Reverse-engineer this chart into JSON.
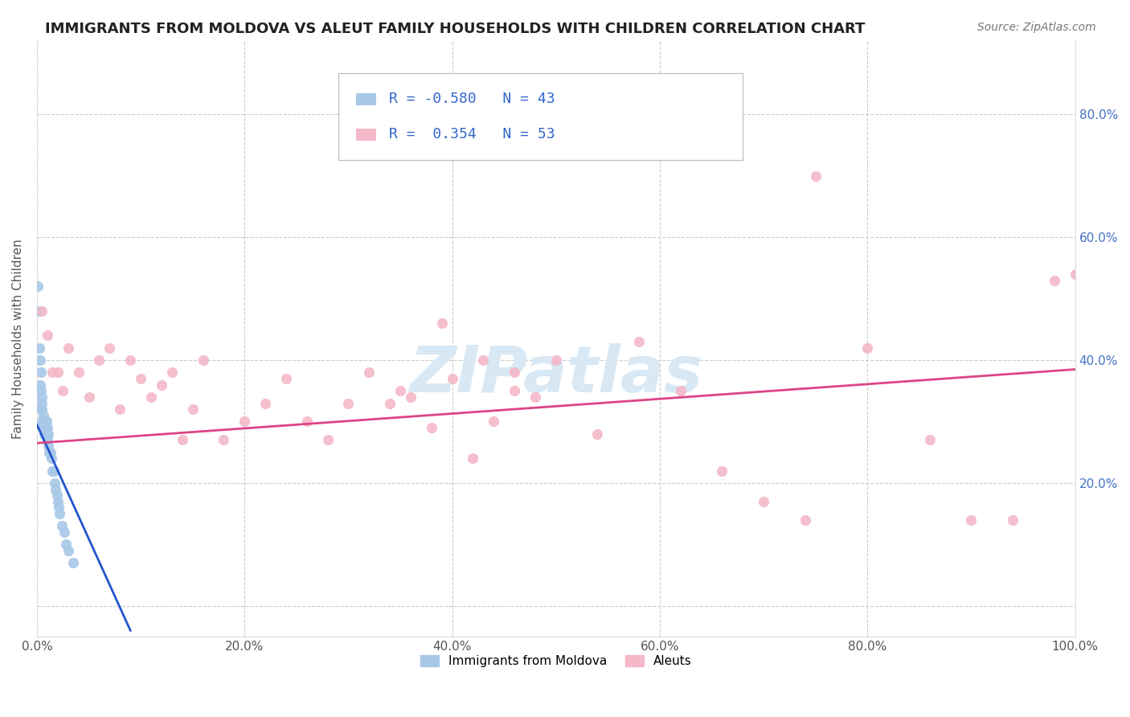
{
  "title": "IMMIGRANTS FROM MOLDOVA VS ALEUT FAMILY HOUSEHOLDS WITH CHILDREN CORRELATION CHART",
  "source": "Source: ZipAtlas.com",
  "ylabel": "Family Households with Children",
  "xlim": [
    0.0,
    1.0
  ],
  "ylim": [
    -0.05,
    0.92
  ],
  "yticks": [
    0.0,
    0.2,
    0.4,
    0.6,
    0.8
  ],
  "ytick_labels_right": [
    "",
    "20.0%",
    "40.0%",
    "60.0%",
    "80.0%"
  ],
  "xticks": [
    0.0,
    0.2,
    0.4,
    0.6,
    0.8,
    1.0
  ],
  "xtick_labels": [
    "0.0%",
    "20.0%",
    "40.0%",
    "60.0%",
    "80.0%",
    "100.0%"
  ],
  "legend_labels": [
    "Immigrants from Moldova",
    "Aleuts"
  ],
  "blue_scatter_x": [
    0.001,
    0.002,
    0.002,
    0.003,
    0.003,
    0.004,
    0.004,
    0.004,
    0.005,
    0.005,
    0.005,
    0.005,
    0.006,
    0.006,
    0.006,
    0.007,
    0.007,
    0.007,
    0.008,
    0.008,
    0.008,
    0.009,
    0.009,
    0.01,
    0.01,
    0.011,
    0.011,
    0.012,
    0.013,
    0.014,
    0.015,
    0.016,
    0.017,
    0.018,
    0.019,
    0.02,
    0.021,
    0.022,
    0.024,
    0.026,
    0.028,
    0.03,
    0.035
  ],
  "blue_scatter_y": [
    0.52,
    0.48,
    0.42,
    0.4,
    0.36,
    0.38,
    0.35,
    0.32,
    0.34,
    0.32,
    0.3,
    0.33,
    0.31,
    0.29,
    0.3,
    0.3,
    0.3,
    0.28,
    0.3,
    0.28,
    0.29,
    0.28,
    0.3,
    0.27,
    0.29,
    0.28,
    0.26,
    0.25,
    0.25,
    0.24,
    0.22,
    0.22,
    0.2,
    0.19,
    0.18,
    0.17,
    0.16,
    0.15,
    0.13,
    0.12,
    0.1,
    0.09,
    0.07
  ],
  "pink_scatter_x": [
    0.005,
    0.01,
    0.015,
    0.02,
    0.025,
    0.03,
    0.04,
    0.05,
    0.06,
    0.07,
    0.08,
    0.09,
    0.1,
    0.11,
    0.12,
    0.13,
    0.14,
    0.15,
    0.16,
    0.18,
    0.2,
    0.22,
    0.24,
    0.26,
    0.28,
    0.3,
    0.32,
    0.34,
    0.36,
    0.38,
    0.4,
    0.42,
    0.44,
    0.46,
    0.48,
    0.5,
    0.54,
    0.58,
    0.62,
    0.66,
    0.7,
    0.74,
    0.8,
    0.86,
    0.9,
    0.94,
    1.0,
    0.39,
    0.43,
    0.35,
    0.46,
    0.98,
    0.75
  ],
  "pink_scatter_y": [
    0.48,
    0.44,
    0.38,
    0.38,
    0.35,
    0.42,
    0.38,
    0.34,
    0.4,
    0.42,
    0.32,
    0.4,
    0.37,
    0.34,
    0.36,
    0.38,
    0.27,
    0.32,
    0.4,
    0.27,
    0.3,
    0.33,
    0.37,
    0.3,
    0.27,
    0.33,
    0.38,
    0.33,
    0.34,
    0.29,
    0.37,
    0.24,
    0.3,
    0.35,
    0.34,
    0.4,
    0.28,
    0.43,
    0.35,
    0.22,
    0.17,
    0.14,
    0.42,
    0.27,
    0.14,
    0.14,
    0.54,
    0.46,
    0.4,
    0.35,
    0.38,
    0.53,
    0.7
  ],
  "blue_line_x": [
    0.0,
    0.09
  ],
  "blue_line_y": [
    0.295,
    -0.04
  ],
  "pink_line_x": [
    0.0,
    1.0
  ],
  "pink_line_y": [
    0.265,
    0.385
  ],
  "scatter_blue_color": "#a8c8e8",
  "scatter_pink_color": "#f4b8c8",
  "line_blue_color": "#2255cc",
  "line_pink_color": "#dd4488",
  "watermark_text": "ZIPatlas",
  "watermark_color": "#d8e8f4",
  "bg_color": "#ffffff",
  "grid_color": "#cccccc",
  "title_fontsize": 13,
  "source_fontsize": 10,
  "tick_fontsize": 11,
  "ylabel_fontsize": 11
}
